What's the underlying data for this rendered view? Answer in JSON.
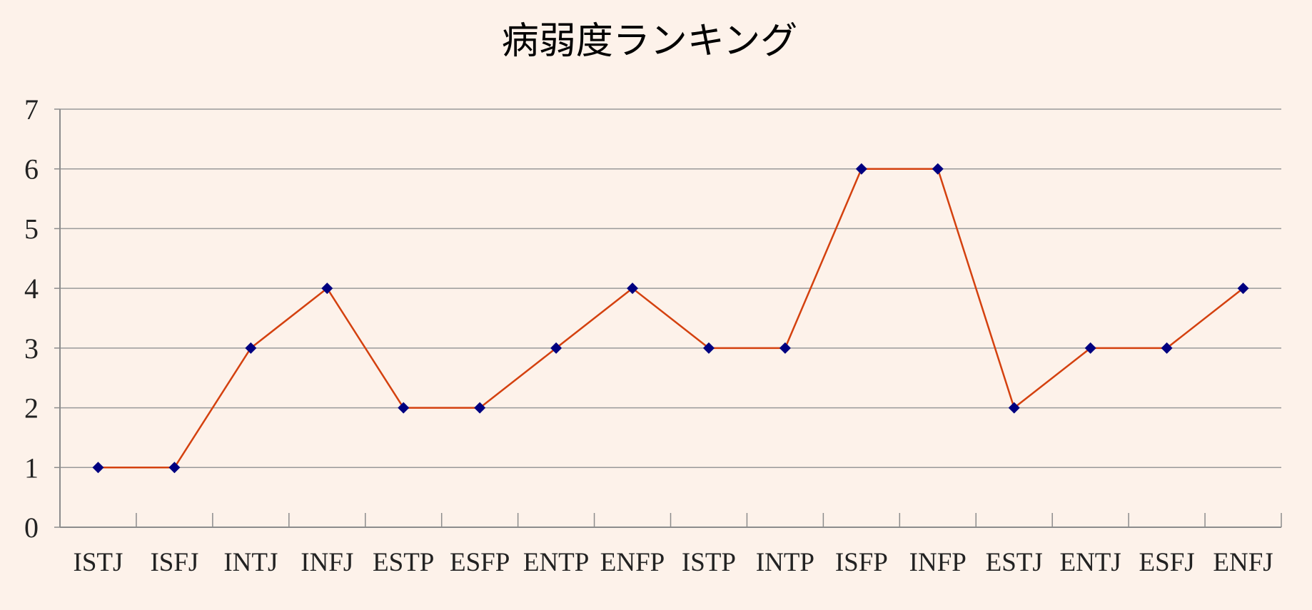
{
  "chart_data": {
    "type": "line",
    "title": "病弱度ランキング",
    "xlabel": "",
    "ylabel": "",
    "categories": [
      "ISTJ",
      "ISFJ",
      "INTJ",
      "INFJ",
      "ESTP",
      "ESFP",
      "ENTP",
      "ENFP",
      "ISTP",
      "INTP",
      "ISFP",
      "INFP",
      "ESTJ",
      "ENTJ",
      "ESFJ",
      "ENFJ"
    ],
    "series": [
      {
        "values": [
          1,
          1,
          3,
          4,
          2,
          2,
          3,
          4,
          3,
          3,
          6,
          6,
          2,
          3,
          3,
          4
        ]
      }
    ],
    "y_ticks": [
      "0",
      "1",
      "2",
      "3",
      "4",
      "5",
      "6",
      "7"
    ],
    "ylim": [
      0,
      7
    ],
    "grid": true,
    "legend": "none",
    "colors": {
      "background": "#fdf2ea",
      "line": "#d4410f",
      "marker": "#000080",
      "grid": "#9a9a9a",
      "axis": "#8c8c8c"
    }
  }
}
